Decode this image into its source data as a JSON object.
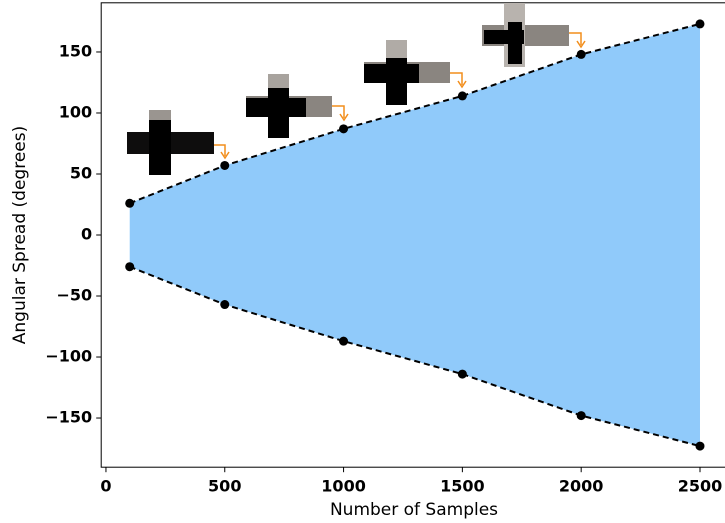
{
  "chart_data": {
    "type": "line",
    "x_label": "Number of Samples",
    "y_label": "Angular Spread (degrees)",
    "x": [
      100,
      500,
      1000,
      1500,
      2000,
      2500
    ],
    "series": [
      {
        "color": "#000000",
        "values": [
          26,
          57,
          87,
          114,
          148,
          173
        ]
      },
      {
        "color": "#000000",
        "values": [
          -26,
          -57,
          -87,
          -114,
          -148,
          -173
        ]
      }
    ],
    "fill_color": "#90cafa",
    "xlim": [
      -20,
      2620
    ],
    "ylim": [
      -190.3,
      190.3
    ],
    "xticks": [
      0,
      500,
      1000,
      1500,
      2000,
      2500
    ],
    "yticks": [
      {
        "value": -150,
        "label": "−150"
      },
      {
        "value": -100,
        "label": "−100"
      },
      {
        "value": -50,
        "label": "−50"
      },
      0,
      50,
      100,
      150
    ]
  }
}
